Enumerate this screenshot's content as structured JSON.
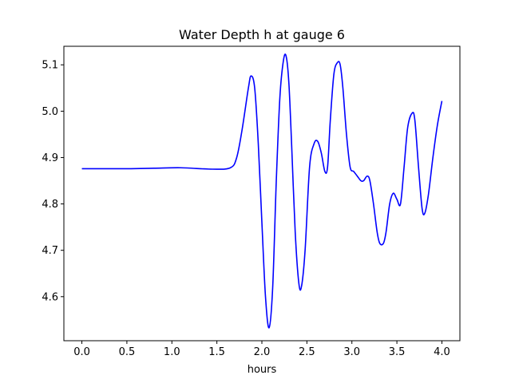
{
  "chart_data": {
    "type": "line",
    "title": "Water Depth h at gauge 6",
    "xlabel": "hours",
    "ylabel": "",
    "xlim": [
      -0.2,
      4.2
    ],
    "ylim": [
      4.505,
      5.14
    ],
    "xticks": [
      0.0,
      0.5,
      1.0,
      1.5,
      2.0,
      2.5,
      3.0,
      3.5,
      4.0
    ],
    "xtick_labels": [
      "0.0",
      "0.5",
      "1.0",
      "1.5",
      "2.0",
      "2.5",
      "3.0",
      "3.5",
      "4.0"
    ],
    "yticks": [
      4.6,
      4.7,
      4.8,
      4.9,
      5.0,
      5.1
    ],
    "ytick_labels": [
      "4.6",
      "4.7",
      "4.8",
      "4.9",
      "5.0",
      "5.1"
    ],
    "grid": false,
    "series": [
      {
        "color": "#0000ff",
        "x": [
          0.0,
          0.5,
          0.8,
          1.1,
          1.45,
          1.65,
          1.72,
          1.78,
          1.85,
          1.88,
          1.92,
          1.96,
          2.0,
          2.04,
          2.08,
          2.12,
          2.16,
          2.2,
          2.24,
          2.27,
          2.3,
          2.33,
          2.37,
          2.41,
          2.44,
          2.48,
          2.53,
          2.58,
          2.62,
          2.66,
          2.7,
          2.73,
          2.76,
          2.8,
          2.84,
          2.87,
          2.9,
          2.94,
          2.98,
          3.02,
          3.06,
          3.1,
          3.13,
          3.17,
          3.2,
          3.24,
          3.28,
          3.31,
          3.35,
          3.38,
          3.42,
          3.46,
          3.5,
          3.54,
          3.58,
          3.62,
          3.67,
          3.7,
          3.74,
          3.78,
          3.81,
          3.85,
          3.9,
          3.95,
          4.0
        ],
        "y": [
          4.876,
          4.876,
          4.877,
          4.878,
          4.875,
          4.878,
          4.9,
          4.96,
          5.05,
          5.076,
          5.05,
          4.93,
          4.76,
          4.6,
          4.533,
          4.62,
          4.85,
          5.03,
          5.11,
          5.118,
          5.06,
          4.93,
          4.74,
          4.63,
          4.622,
          4.7,
          4.88,
          4.93,
          4.935,
          4.91,
          4.87,
          4.88,
          4.98,
          5.08,
          5.105,
          5.1,
          5.05,
          4.95,
          4.88,
          4.87,
          4.86,
          4.85,
          4.85,
          4.86,
          4.85,
          4.8,
          4.74,
          4.715,
          4.715,
          4.74,
          4.8,
          4.823,
          4.81,
          4.8,
          4.88,
          4.965,
          4.996,
          4.98,
          4.88,
          4.79,
          4.78,
          4.82,
          4.9,
          4.97,
          5.022
        ]
      }
    ]
  }
}
